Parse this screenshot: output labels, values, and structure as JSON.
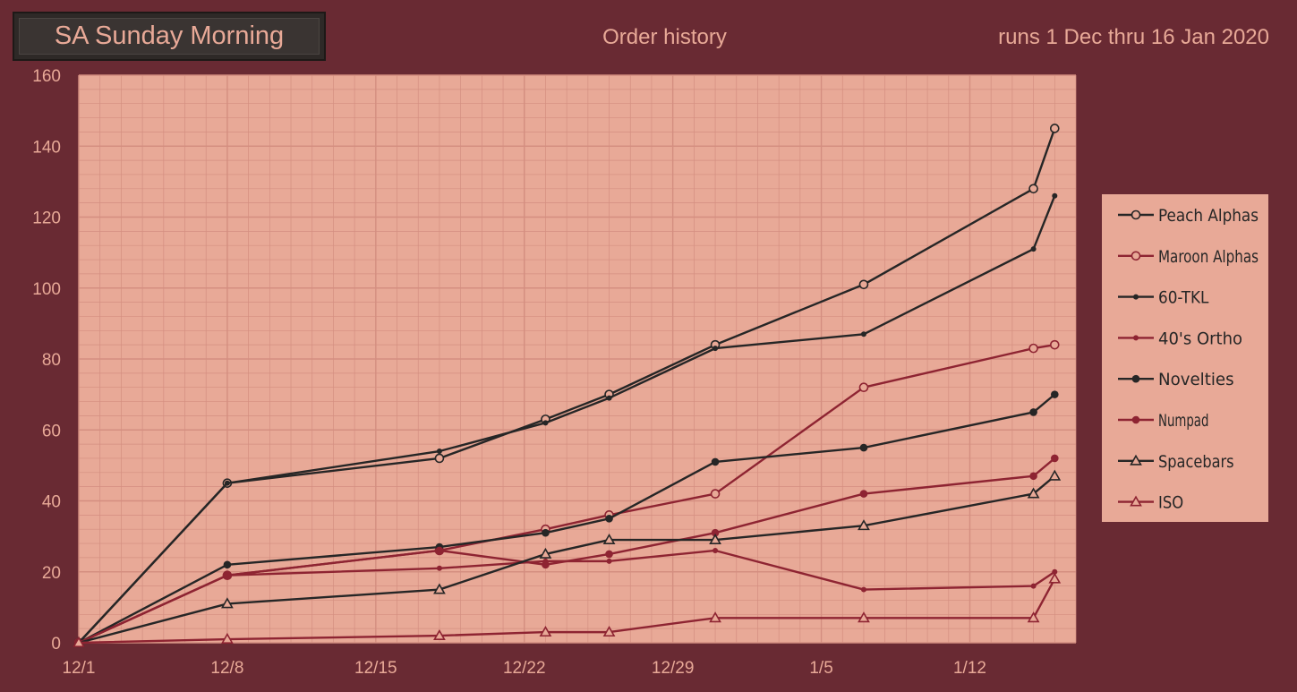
{
  "header": {
    "app_title": "SA Sunday Morning",
    "chart_title": "Order history",
    "runs": "runs 1 Dec thru 16 Jan 2020"
  },
  "colors": {
    "background": "#692a33",
    "plot": "#e8a997",
    "dark_series": "#262626",
    "maroon_series": "#8e2432",
    "text": "#e8a997"
  },
  "chart_data": {
    "type": "line",
    "x_tick_labels": [
      "12/1",
      "12/8",
      "12/15",
      "12/22",
      "12/29",
      "1/5",
      "1/12"
    ],
    "x_ticks": [
      "2019-12-01",
      "2019-12-08",
      "2019-12-15",
      "2019-12-22",
      "2019-12-29",
      "2020-01-05",
      "2020-01-12"
    ],
    "xlim": [
      "2019-12-01",
      "2020-01-17"
    ],
    "ylim": [
      0,
      160
    ],
    "y_ticks": [
      0,
      20,
      40,
      60,
      80,
      100,
      120,
      140,
      160
    ],
    "grid": true,
    "legend_position": "right",
    "x": [
      "2019-12-01",
      "2019-12-08",
      "2019-12-18",
      "2019-12-23",
      "2019-12-26",
      "2019-12-31",
      "2020-01-07",
      "2020-01-15",
      "2020-01-16"
    ],
    "series": [
      {
        "name": "Peach Alphas",
        "values": [
          0,
          45,
          52,
          63,
          70,
          84,
          101,
          128,
          145
        ],
        "color": "#262626",
        "marker": "open-circle"
      },
      {
        "name": "Maroon Alphas",
        "values": [
          0,
          19,
          26,
          32,
          36,
          42,
          72,
          83,
          84
        ],
        "color": "#8e2432",
        "marker": "open-circle"
      },
      {
        "name": "60-TKL",
        "values": [
          0,
          45,
          54,
          62,
          69,
          83,
          87,
          111,
          126
        ],
        "color": "#262626",
        "marker": "small-dot"
      },
      {
        "name": "40's Ortho",
        "values": [
          0,
          19,
          21,
          23,
          23,
          26,
          15,
          16,
          20
        ],
        "color": "#8e2432",
        "marker": "small-dot"
      },
      {
        "name": "Novelties",
        "values": [
          0,
          22,
          27,
          31,
          35,
          51,
          55,
          65,
          70
        ],
        "color": "#262626",
        "marker": "dot"
      },
      {
        "name": "Numpad",
        "values": [
          0,
          19,
          26,
          22,
          25,
          31,
          42,
          47,
          52
        ],
        "color": "#8e2432",
        "marker": "dot"
      },
      {
        "name": "Spacebars",
        "values": [
          0,
          11,
          15,
          25,
          29,
          29,
          33,
          42,
          47
        ],
        "color": "#262626",
        "marker": "open-triangle"
      },
      {
        "name": "ISO",
        "values": [
          0,
          1,
          2,
          3,
          3,
          7,
          7,
          7,
          18
        ],
        "color": "#8e2432",
        "marker": "open-triangle"
      }
    ]
  }
}
